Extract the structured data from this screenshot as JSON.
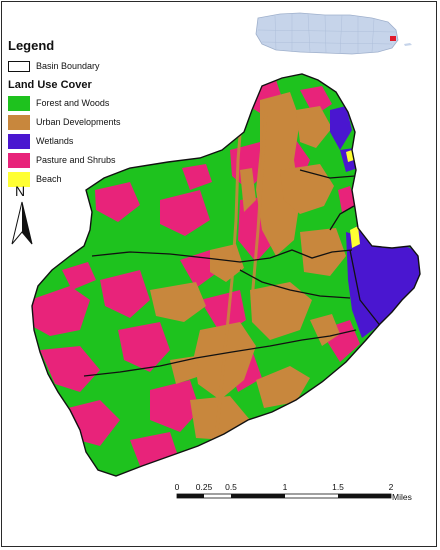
{
  "legend": {
    "title": "Legend",
    "boundary_label": "Basin Boundary",
    "cover_title": "Land Use Cover",
    "items": [
      {
        "label": "Forest and Woods",
        "color": "#1ec21e"
      },
      {
        "label": "Urban Developments",
        "color": "#c8873d"
      },
      {
        "label": "Wetlands",
        "color": "#4a16d0"
      },
      {
        "label": "Pasture and Shrubs",
        "color": "#e8237a"
      },
      {
        "label": "Beach",
        "color": "#ffff33"
      }
    ]
  },
  "north_arrow": {
    "label": "N"
  },
  "scale_bar": {
    "labels": [
      "0",
      "0.25",
      "0.5",
      "1",
      "1.5",
      "2"
    ],
    "units": "Miles"
  },
  "locator_map": {
    "description_icon": "puerto-rico-locator-icon"
  }
}
